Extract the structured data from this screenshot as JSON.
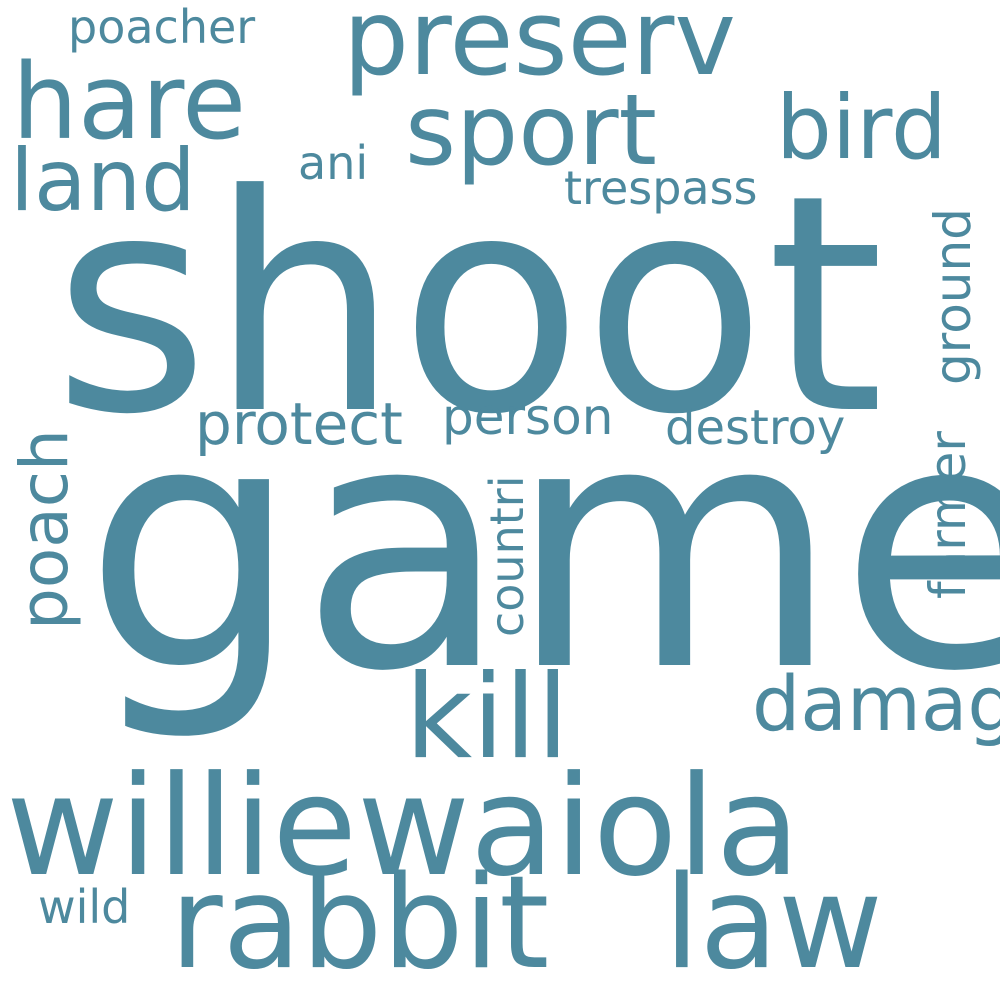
{
  "color": "#4d899e",
  "background": "#ffffff",
  "words": {
    "game": "game",
    "shoot": "shoot",
    "williewaiola": "williewaiola",
    "rabbit": "rabbit",
    "law": "law",
    "preserv": "preserv",
    "sport": "sport",
    "hare": "hare",
    "kill": "kill",
    "bird": "bird",
    "land": "land",
    "poacher": "poacher",
    "damag": "damag",
    "poach": "poach",
    "protect": "protect",
    "person": "person",
    "destroy": "destroy",
    "trespass": "trespass",
    "ani": "ani",
    "ground": "ground",
    "farmer": "farmer",
    "countri": "countri",
    "wild": "wild"
  }
}
